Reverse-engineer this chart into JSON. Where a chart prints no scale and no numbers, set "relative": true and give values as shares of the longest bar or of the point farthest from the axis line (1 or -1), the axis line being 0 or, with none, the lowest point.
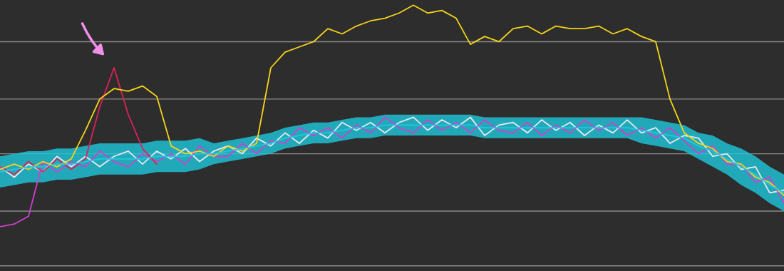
{
  "chart_data": {
    "type": "line",
    "relative": true,
    "legend": false,
    "grid": false,
    "categories": [
      null,
      null,
      null,
      null,
      null,
      null,
      null,
      null,
      null,
      null,
      null,
      null,
      null,
      null,
      null,
      null,
      null,
      null,
      null,
      null,
      null,
      null,
      null,
      null,
      null,
      null,
      null,
      null,
      null,
      null,
      null,
      null,
      null,
      null,
      null,
      null,
      null,
      null,
      null,
      null,
      null,
      null,
      null,
      null,
      null,
      null,
      null,
      null,
      null,
      null,
      null,
      null,
      null,
      null,
      null,
      null
    ],
    "ref_lines": [
      {
        "axis": "y",
        "value": 0,
        "color": "#8a8a8a"
      },
      {
        "axis": "y",
        "value": 0.21,
        "color": "#8a8a8a"
      },
      {
        "axis": "y",
        "value": 0.43,
        "color": "#8a8a8a"
      },
      {
        "axis": "y",
        "value": 0.64,
        "color": "#8a8a8a"
      },
      {
        "axis": "y",
        "value": 0.86,
        "color": "#8a8a8a"
      }
    ],
    "series": [
      {
        "color": "#1ec8dc",
        "values": [
          0.36,
          0.37,
          0.38,
          0.38,
          0.39,
          0.39,
          0.4,
          0.41,
          0.41,
          0.41,
          0.41,
          0.42,
          0.42,
          0.42,
          0.43,
          0.43,
          0.44,
          0.45,
          0.46,
          0.47,
          0.49,
          0.5,
          0.51,
          0.51,
          0.52,
          0.53,
          0.53,
          0.54,
          0.54,
          0.54,
          0.54,
          0.54,
          0.54,
          0.54,
          0.53,
          0.53,
          0.53,
          0.53,
          0.53,
          0.53,
          0.53,
          0.53,
          0.53,
          0.53,
          0.53,
          0.52,
          0.51,
          0.5,
          0.49,
          0.46,
          0.44,
          0.41,
          0.38,
          0.35,
          0.31,
          0.28
        ],
        "lower": [
          0.3,
          0.31,
          0.32,
          0.32,
          0.33,
          0.33,
          0.34,
          0.35,
          0.35,
          0.35,
          0.35,
          0.36,
          0.36,
          0.36,
          0.37,
          0.39,
          0.4,
          0.41,
          0.42,
          0.43,
          0.45,
          0.46,
          0.47,
          0.47,
          0.48,
          0.49,
          0.49,
          0.5,
          0.5,
          0.5,
          0.5,
          0.5,
          0.5,
          0.5,
          0.49,
          0.49,
          0.49,
          0.49,
          0.49,
          0.49,
          0.49,
          0.49,
          0.49,
          0.49,
          0.49,
          0.47,
          0.46,
          0.45,
          0.44,
          0.41,
          0.38,
          0.35,
          0.31,
          0.28,
          0.24,
          0.21
        ],
        "upper": [
          0.42,
          0.43,
          0.44,
          0.44,
          0.45,
          0.45,
          0.46,
          0.47,
          0.47,
          0.47,
          0.47,
          0.48,
          0.48,
          0.48,
          0.49,
          0.47,
          0.48,
          0.49,
          0.5,
          0.51,
          0.53,
          0.54,
          0.55,
          0.55,
          0.56,
          0.57,
          0.57,
          0.58,
          0.58,
          0.58,
          0.58,
          0.58,
          0.58,
          0.58,
          0.57,
          0.57,
          0.57,
          0.57,
          0.57,
          0.57,
          0.57,
          0.57,
          0.57,
          0.57,
          0.57,
          0.57,
          0.56,
          0.55,
          0.54,
          0.51,
          0.5,
          0.47,
          0.45,
          0.42,
          0.38,
          0.35
        ]
      },
      {
        "color": "#e8e8f0",
        "values": [
          0.38,
          0.34,
          0.39,
          0.36,
          0.42,
          0.38,
          0.42,
          0.38,
          0.42,
          0.44,
          0.39,
          0.44,
          0.41,
          0.45,
          0.4,
          0.44,
          0.46,
          0.43,
          0.49,
          0.46,
          0.51,
          0.47,
          0.52,
          0.49,
          0.55,
          0.52,
          0.55,
          0.51,
          0.55,
          0.57,
          0.52,
          0.56,
          0.53,
          0.57,
          0.5,
          0.54,
          0.55,
          0.51,
          0.56,
          0.52,
          0.55,
          0.5,
          0.54,
          0.51,
          0.56,
          0.51,
          0.53,
          0.47,
          0.5,
          0.49,
          0.42,
          0.43,
          0.37,
          0.38,
          0.28,
          0.29
        ]
      },
      {
        "color": "#d040d0",
        "values": [
          0.15,
          0.16,
          0.19,
          0.4,
          0.36,
          0.4,
          0.38,
          0.44,
          0.4,
          0.38,
          0.43,
          0.4,
          0.43,
          0.39,
          0.46,
          0.42,
          0.42,
          0.47,
          0.43,
          0.48,
          0.47,
          0.53,
          0.5,
          0.53,
          0.49,
          0.54,
          0.51,
          0.57,
          0.53,
          0.51,
          0.56,
          0.52,
          0.55,
          0.51,
          0.56,
          0.52,
          0.51,
          0.55,
          0.5,
          0.54,
          0.51,
          0.56,
          0.52,
          0.55,
          0.5,
          0.53,
          0.49,
          0.53,
          0.48,
          0.43,
          0.46,
          0.39,
          0.39,
          0.32,
          0.34,
          0.24
        ]
      },
      {
        "color": "#e0205a",
        "values": [
          0.38,
          0.35,
          0.4,
          0.36,
          0.41,
          0.37,
          0.41,
          0.61,
          0.76,
          0.58,
          0.45,
          0.39,
          null,
          null,
          null,
          null,
          null,
          null,
          null,
          null,
          null,
          null,
          null,
          null,
          null,
          null,
          null,
          null,
          null,
          null,
          null,
          null,
          null,
          null,
          null,
          null,
          null,
          null,
          null,
          null,
          null,
          null,
          null,
          null,
          null,
          null,
          null,
          null,
          null,
          null,
          null,
          null,
          null,
          null,
          null,
          null
        ]
      },
      {
        "color": "#f5d31a",
        "values": [
          0.37,
          0.39,
          0.37,
          0.4,
          0.38,
          0.41,
          0.52,
          0.64,
          0.68,
          0.67,
          0.69,
          0.65,
          0.46,
          0.43,
          0.44,
          0.42,
          0.46,
          0.44,
          0.47,
          0.76,
          0.82,
          0.84,
          0.86,
          0.91,
          0.89,
          0.92,
          0.94,
          0.95,
          0.97,
          1.0,
          0.97,
          0.98,
          0.95,
          0.85,
          0.88,
          0.86,
          0.91,
          0.92,
          0.89,
          0.92,
          0.91,
          0.91,
          0.92,
          0.89,
          0.91,
          0.88,
          0.86,
          0.64,
          0.51,
          0.47,
          0.45,
          0.4,
          0.39,
          0.34,
          0.32,
          0.27
        ]
      }
    ]
  }
}
